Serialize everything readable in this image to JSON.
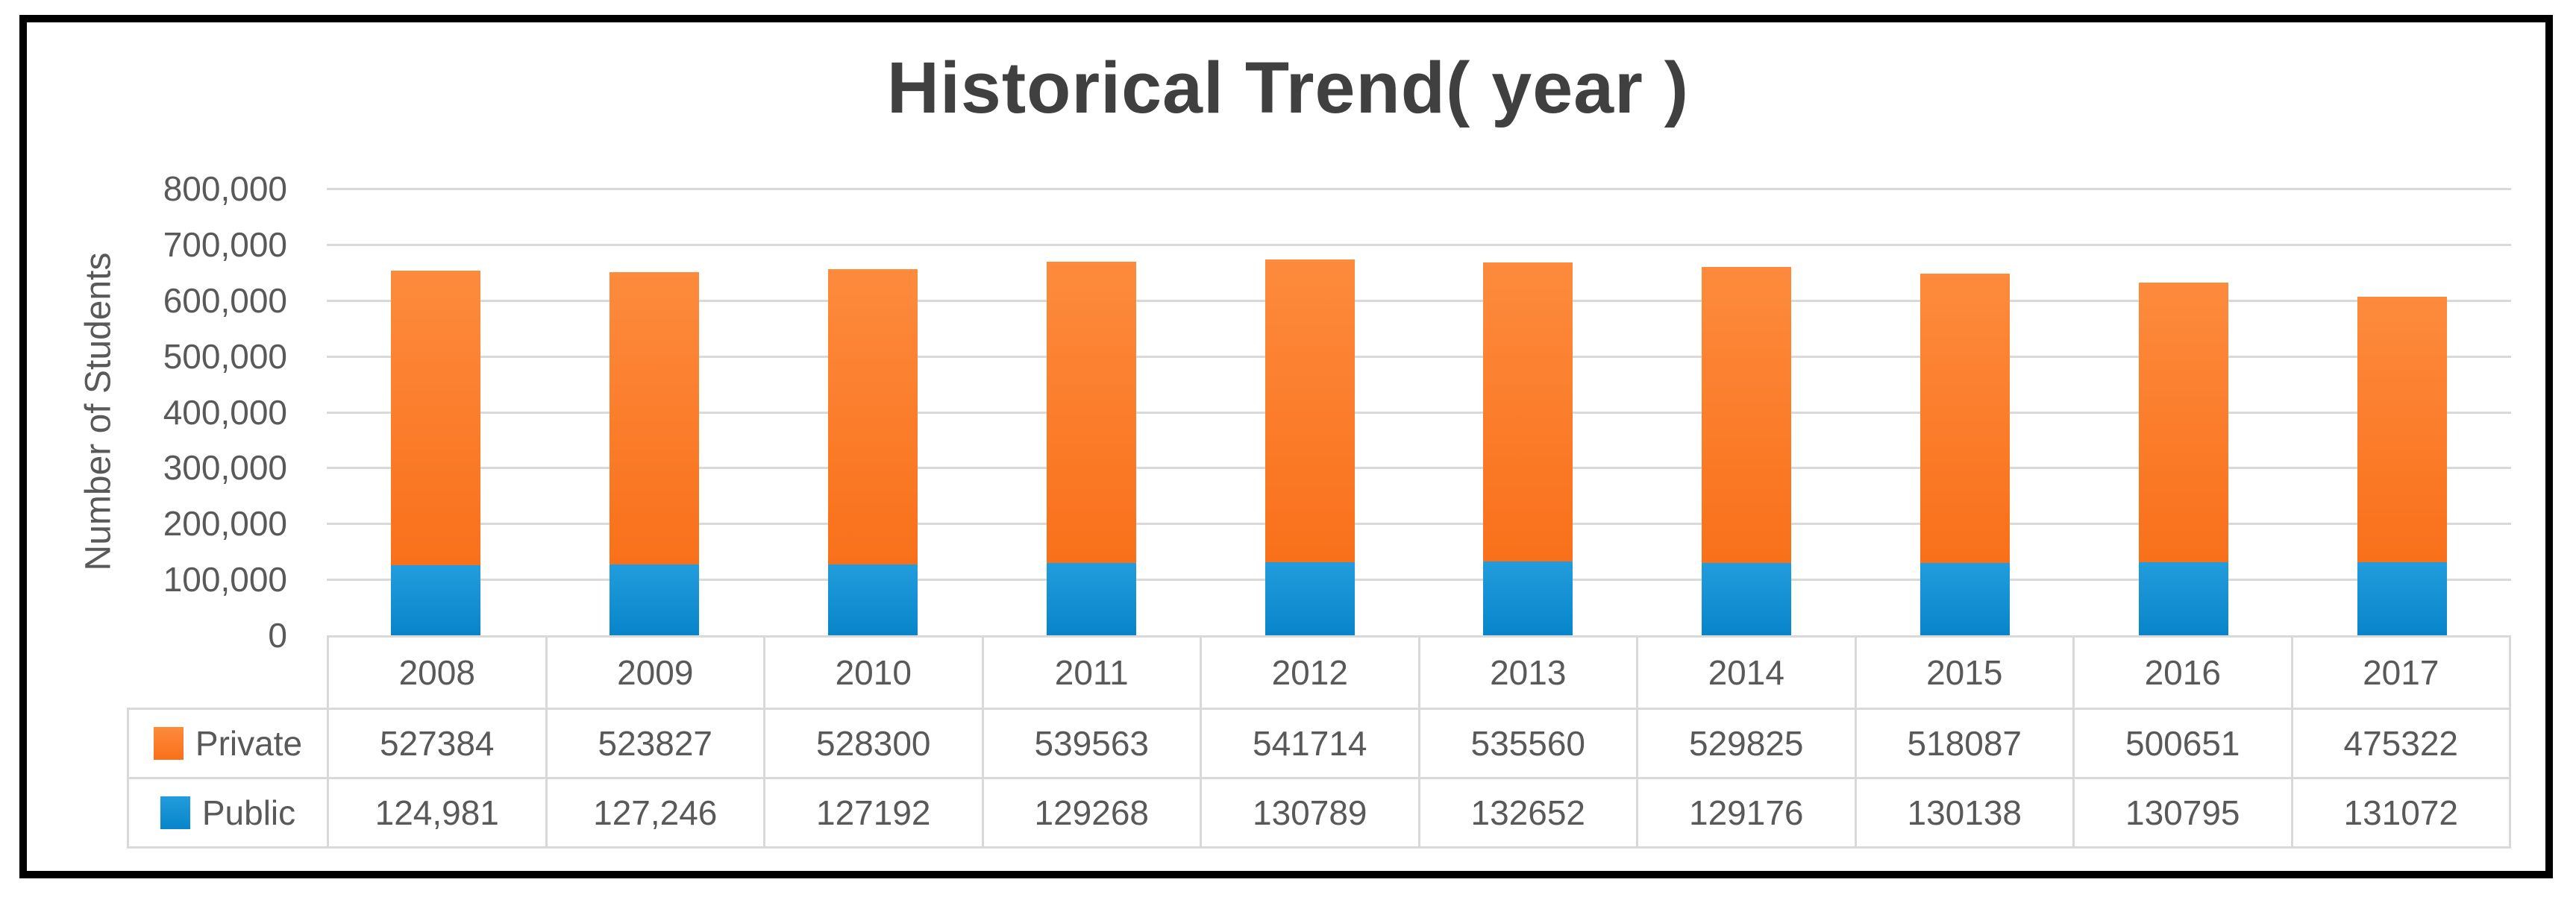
{
  "chart_data": {
    "type": "bar",
    "stacked": true,
    "title": "Historical Trend( year )",
    "xlabel": "",
    "ylabel": "Number of Students",
    "categories": [
      "2008",
      "2009",
      "2010",
      "2011",
      "2012",
      "2013",
      "2014",
      "2015",
      "2016",
      "2017"
    ],
    "series": [
      {
        "name": "Private",
        "values": [
          527384,
          523827,
          528300,
          539563,
          541714,
          535560,
          529825,
          518087,
          500651,
          475322
        ],
        "display": [
          "527384",
          "523827",
          "528300",
          "539563",
          "541714",
          "535560",
          "529825",
          "518087",
          "500651",
          "475322"
        ],
        "color_top": "#FD8B3D",
        "color_bottom": "#F9701A"
      },
      {
        "name": "Public",
        "values": [
          124981,
          127246,
          127192,
          129268,
          130789,
          132652,
          129176,
          130138,
          130795,
          131072
        ],
        "display": [
          "124,981",
          "127,246",
          "127192",
          "129268",
          "130789",
          "132652",
          "129176",
          "130138",
          "130795",
          "131072"
        ],
        "color_top": "#229CDC",
        "color_bottom": "#0885CA"
      }
    ],
    "ylim": [
      0,
      800000
    ],
    "ytick_labels": [
      "800,000",
      "700,000",
      "600,000",
      "500,000",
      "400,000",
      "300,000",
      "200,000",
      "100,000",
      "0"
    ],
    "grid": true,
    "legend_position": "data-table-left"
  },
  "colors": {
    "title_text": "#404040",
    "axis_text": "#595959",
    "grid_line": "#D9D9D9",
    "table_border": "#D9D9D9",
    "frame_border": "#000000"
  }
}
